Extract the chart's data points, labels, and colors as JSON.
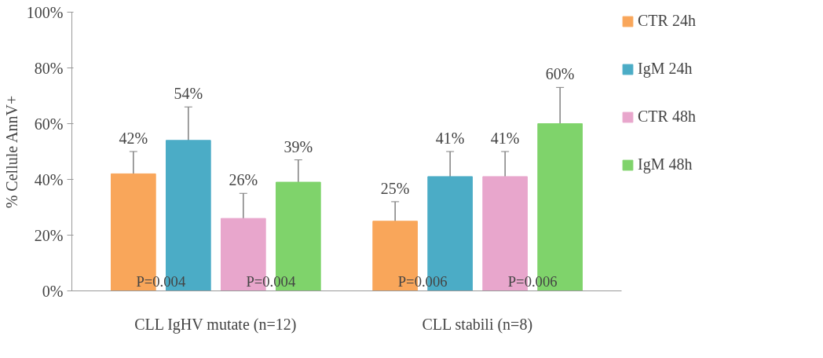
{
  "chart_data": {
    "type": "bar",
    "ylabel": "% Cellule AnnV+",
    "categories": [
      "CLL IgHV mutate (n=12)",
      "CLL stabili (n=8)"
    ],
    "series": [
      {
        "name": "CTR 24h",
        "color": "#f9a65a",
        "values": [
          42,
          25
        ],
        "errors": [
          8,
          7
        ],
        "value_labels": [
          "42%",
          "25%"
        ]
      },
      {
        "name": "IgM 24h",
        "color": "#4bacc6",
        "values": [
          54,
          41
        ],
        "errors": [
          12,
          9
        ],
        "value_labels": [
          "54%",
          "41%"
        ]
      },
      {
        "name": "CTR 48h",
        "color": "#e8a6cc",
        "values": [
          26,
          41
        ],
        "errors": [
          9,
          9
        ],
        "value_labels": [
          "26%",
          "41%"
        ]
      },
      {
        "name": "IgM 48h",
        "color": "#7fd36b",
        "values": [
          39,
          60
        ],
        "errors": [
          8,
          13
        ],
        "value_labels": [
          "39%",
          "60%"
        ]
      }
    ],
    "ylim": [
      0,
      100
    ],
    "yticks": [
      {
        "value": 0,
        "label": "0%"
      },
      {
        "value": 20,
        "label": "20%"
      },
      {
        "value": 40,
        "label": "40%"
      },
      {
        "value": 60,
        "label": "60%"
      },
      {
        "value": 80,
        "label": "80%"
      },
      {
        "value": 100,
        "label": "100%"
      }
    ],
    "data_labels": true,
    "annotations": [
      "P=0.004",
      "P=0.004",
      "P=0.006",
      "P=0.006"
    ],
    "grid": false,
    "legend": "right"
  }
}
